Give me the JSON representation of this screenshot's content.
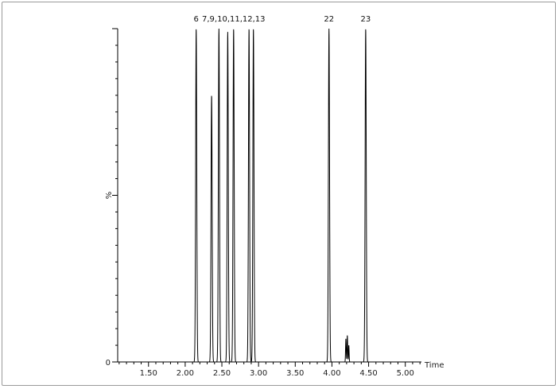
{
  "chart_data": {
    "type": "line",
    "xlabel": "Time",
    "ylabel": "%",
    "xlim": [
      1.08,
      5.22
    ],
    "ylim": [
      0,
      100
    ],
    "x_ticks": [
      {
        "value": 1.5,
        "label": "1.50"
      },
      {
        "value": 2.0,
        "label": "2.00"
      },
      {
        "value": 2.5,
        "label": "2.50"
      },
      {
        "value": 3.0,
        "label": "3.00"
      },
      {
        "value": 3.5,
        "label": "3.50"
      },
      {
        "value": 4.0,
        "label": "4.00"
      },
      {
        "value": 4.5,
        "label": "4.50"
      },
      {
        "value": 5.0,
        "label": "5.00"
      }
    ],
    "y_tick_labels": [
      {
        "value": 0,
        "label": "0"
      }
    ],
    "peaks": [
      {
        "rt": 2.15,
        "height": 100,
        "width": 0.018
      },
      {
        "rt": 2.36,
        "height": 80,
        "width": 0.018
      },
      {
        "rt": 2.46,
        "height": 100,
        "width": 0.018
      },
      {
        "rt": 2.58,
        "height": 99,
        "width": 0.018
      },
      {
        "rt": 2.66,
        "height": 100,
        "width": 0.018
      },
      {
        "rt": 2.87,
        "height": 100,
        "width": 0.018
      },
      {
        "rt": 2.93,
        "height": 100,
        "width": 0.018
      },
      {
        "rt": 3.96,
        "height": 100,
        "width": 0.018
      },
      {
        "rt": 4.19,
        "height": 7,
        "width": 0.01
      },
      {
        "rt": 4.21,
        "height": 8,
        "width": 0.01
      },
      {
        "rt": 4.23,
        "height": 5,
        "width": 0.01
      },
      {
        "rt": 4.46,
        "height": 100,
        "width": 0.018
      }
    ],
    "peak_labels": [
      {
        "rt": 2.15,
        "text": "6"
      },
      {
        "rt": 2.66,
        "text": "7,9,10,11,12,13"
      },
      {
        "rt": 3.96,
        "text": "22"
      },
      {
        "rt": 4.46,
        "text": "23"
      }
    ]
  }
}
